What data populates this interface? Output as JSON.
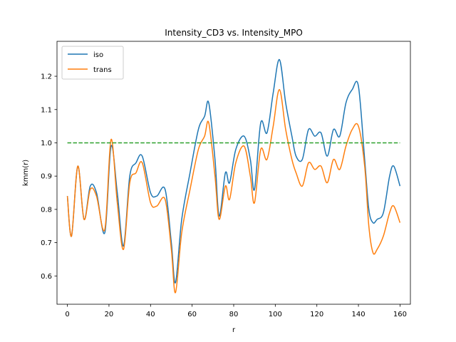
{
  "chart_data": {
    "type": "line",
    "title": "Intensity_CD3 vs. Intensity_MPO",
    "xlabel": "r",
    "ylabel": "kmm(r)",
    "xlim": [
      -5,
      165
    ],
    "ylim": [
      0.515,
      1.305
    ],
    "xticks": [
      0,
      20,
      40,
      60,
      80,
      100,
      120,
      140,
      160
    ],
    "xtick_labels": [
      "0",
      "20",
      "40",
      "60",
      "80",
      "100",
      "120",
      "140",
      "160"
    ],
    "yticks": [
      0.6,
      0.7,
      0.8,
      0.9,
      1.0,
      1.1,
      1.2
    ],
    "ytick_labels": [
      "0.6",
      "0.7",
      "0.8",
      "0.9",
      "1.0",
      "1.1",
      "1.2"
    ],
    "grid": false,
    "legend_position": "top-left",
    "series": [
      {
        "name": "iso",
        "color": "#1f77b4",
        "x": [
          0,
          2,
          5,
          8,
          11,
          14,
          18,
          21,
          24,
          27,
          30,
          33,
          36,
          40,
          43,
          47,
          50,
          52,
          55,
          59,
          63,
          66,
          68,
          71,
          73,
          76,
          78,
          81,
          85,
          88,
          90,
          93,
          96,
          99,
          102,
          105,
          108,
          110,
          113,
          116,
          119,
          122,
          125,
          128,
          131,
          134,
          137,
          140,
          143,
          145,
          147,
          149,
          152,
          155,
          157,
          160
        ],
        "y": [
          0.84,
          0.72,
          0.93,
          0.77,
          0.87,
          0.85,
          0.73,
          0.99,
          0.85,
          0.69,
          0.9,
          0.94,
          0.96,
          0.85,
          0.84,
          0.86,
          0.7,
          0.58,
          0.77,
          0.91,
          1.04,
          1.08,
          1.12,
          0.95,
          0.78,
          0.91,
          0.88,
          0.98,
          1.02,
          0.95,
          0.86,
          1.06,
          1.03,
          1.15,
          1.25,
          1.12,
          1.02,
          0.96,
          0.95,
          1.04,
          1.02,
          1.03,
          0.96,
          1.04,
          1.02,
          1.12,
          1.16,
          1.17,
          0.95,
          0.8,
          0.76,
          0.77,
          0.79,
          0.9,
          0.93,
          0.87
        ]
      },
      {
        "name": "trans",
        "color": "#ff7f0e",
        "x": [
          0,
          2,
          5,
          8,
          11,
          14,
          18,
          21,
          24,
          27,
          30,
          33,
          36,
          40,
          43,
          47,
          50,
          52,
          55,
          59,
          63,
          66,
          68,
          71,
          73,
          76,
          78,
          81,
          85,
          88,
          90,
          93,
          96,
          99,
          102,
          105,
          108,
          110,
          113,
          116,
          119,
          122,
          125,
          128,
          131,
          134,
          137,
          140,
          143,
          145,
          147,
          149,
          152,
          155,
          157,
          160
        ],
        "y": [
          0.84,
          0.72,
          0.93,
          0.77,
          0.86,
          0.84,
          0.74,
          1.01,
          0.82,
          0.68,
          0.88,
          0.91,
          0.94,
          0.82,
          0.81,
          0.83,
          0.68,
          0.55,
          0.73,
          0.86,
          0.98,
          1.02,
          1.06,
          0.9,
          0.77,
          0.87,
          0.83,
          0.94,
          0.99,
          0.9,
          0.82,
          0.98,
          0.95,
          1.05,
          1.16,
          1.04,
          0.95,
          0.91,
          0.87,
          0.94,
          0.92,
          0.93,
          0.88,
          0.95,
          0.92,
          0.99,
          1.04,
          1.05,
          0.93,
          0.75,
          0.67,
          0.68,
          0.72,
          0.79,
          0.81,
          0.76
        ]
      },
      {
        "name": "",
        "color": "#2ca02c",
        "dashed": true,
        "x": [
          0,
          160
        ],
        "y": [
          1.0,
          1.0
        ]
      }
    ]
  }
}
